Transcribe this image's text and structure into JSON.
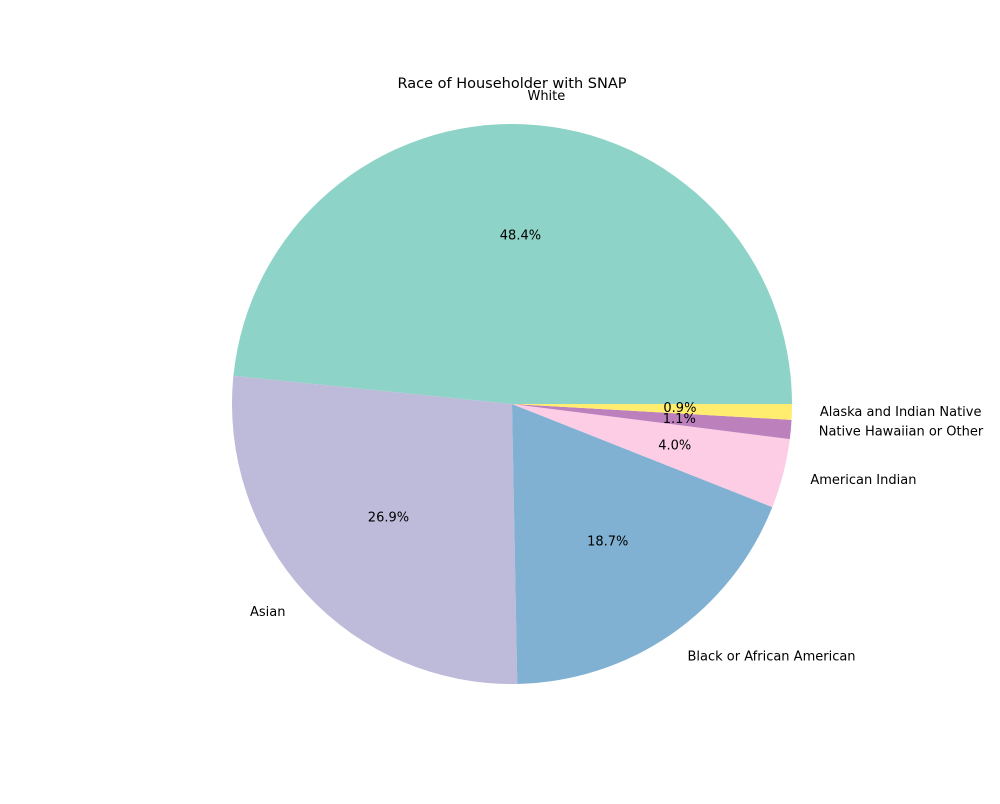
{
  "chart_data": {
    "type": "pie",
    "title": "Race of Householder with SNAP",
    "slices": [
      {
        "label": "White",
        "value": 48.4,
        "pct_label": "48.4%",
        "color": "#8dd3c7"
      },
      {
        "label": "Asian",
        "value": 26.9,
        "pct_label": "26.9%",
        "color": "#bebada"
      },
      {
        "label": "Black or African American",
        "value": 18.7,
        "pct_label": "18.7%",
        "color": "#80b1d3"
      },
      {
        "label": "American Indian",
        "value": 4.0,
        "pct_label": "4.0%",
        "color": "#fccde5"
      },
      {
        "label": "Native Hawaiian or Other",
        "value": 1.1,
        "pct_label": "1.1%",
        "color": "#bc80bd"
      },
      {
        "label": "Alaska and Indian Native",
        "value": 0.9,
        "pct_label": "0.9%",
        "color": "#ffed6f"
      }
    ],
    "start_angle_deg": 0,
    "direction": "counterclockwise",
    "legend": "none"
  }
}
